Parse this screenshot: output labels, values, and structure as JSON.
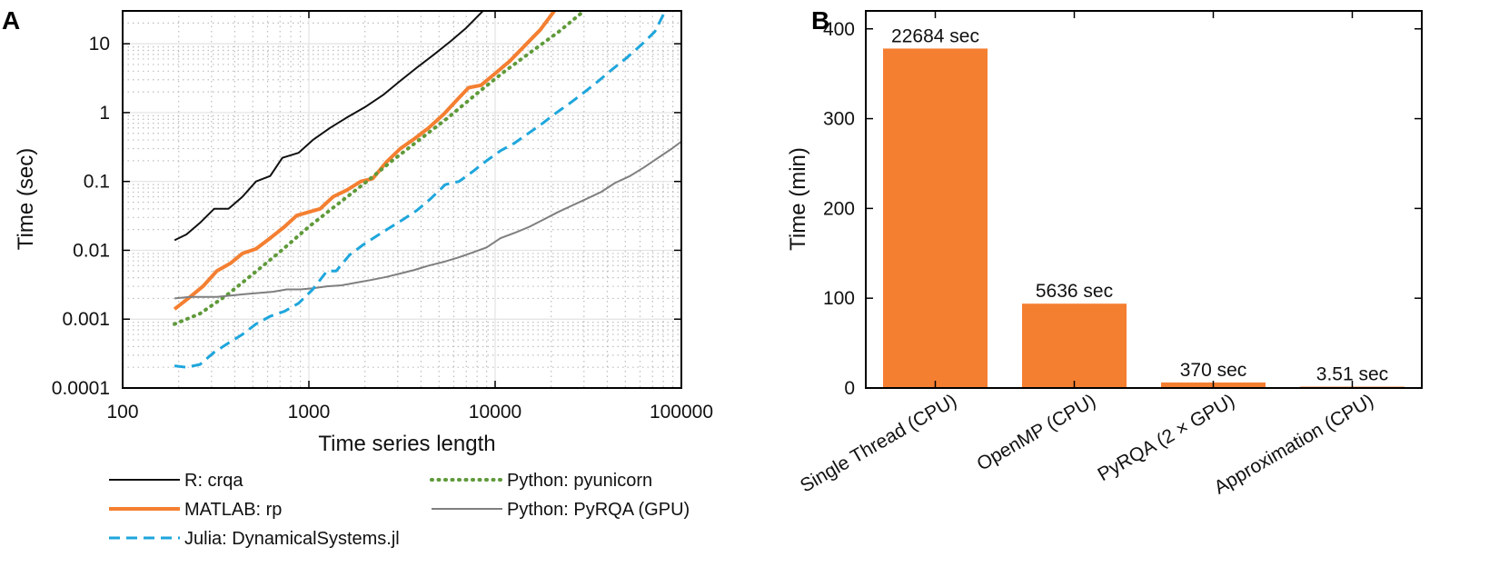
{
  "panels": {
    "a_label": "A",
    "b_label": "B"
  },
  "colors": {
    "r_crqa": "#111111",
    "matlab_rp": "#f47f31",
    "python_pyunicorn": "#5f9a3a",
    "python_pyrqa": "#7f7f7f",
    "julia": "#1ea6dc",
    "bar": "#f47f31"
  },
  "chart_data": [
    {
      "type": "line",
      "panel": "A",
      "xlabel": "Time series length",
      "ylabel": "Time (sec)",
      "xscale": "log",
      "yscale": "log",
      "xlim": [
        100,
        100000
      ],
      "ylim": [
        0.0001,
        30
      ],
      "x_ticks": [
        100,
        1000,
        10000,
        100000
      ],
      "x_tick_labels": [
        "100",
        "1000",
        "10000",
        "100000"
      ],
      "y_ticks": [
        0.0001,
        0.001,
        0.01,
        0.1,
        1,
        10
      ],
      "y_tick_labels": [
        "0.0001",
        "0.001",
        "0.01",
        "0.1",
        "1",
        "10"
      ],
      "grid": true,
      "legend_position": "bottom",
      "series": [
        {
          "name": "R: crqa",
          "color_key": "r_crqa",
          "style": "solid",
          "width": 2,
          "x": [
            190,
            220,
            260,
            310,
            370,
            440,
            520,
            620,
            720,
            880,
            1050,
            1300,
            1600,
            2000,
            2500,
            3100,
            3800,
            4700,
            5800,
            7000,
            8600
          ],
          "y": [
            0.014,
            0.017,
            0.025,
            0.04,
            0.04,
            0.06,
            0.1,
            0.12,
            0.22,
            0.26,
            0.4,
            0.6,
            0.85,
            1.2,
            1.8,
            2.9,
            4.5,
            7.0,
            11,
            17,
            30
          ]
        },
        {
          "name": "MATLAB: rp",
          "color_key": "matlab_rp",
          "style": "solid",
          "width": 4,
          "x": [
            190,
            230,
            270,
            320,
            380,
            440,
            520,
            620,
            740,
            860,
            1000,
            1150,
            1350,
            1600,
            1900,
            2200,
            2600,
            3100,
            3700,
            4400,
            5300,
            6200,
            7200,
            8400,
            10000,
            12000,
            14500,
            17500,
            20800
          ],
          "y": [
            0.0014,
            0.0021,
            0.003,
            0.005,
            0.0065,
            0.009,
            0.0105,
            0.015,
            0.022,
            0.032,
            0.036,
            0.04,
            0.06,
            0.075,
            0.1,
            0.11,
            0.19,
            0.3,
            0.42,
            0.6,
            0.95,
            1.5,
            2.3,
            2.5,
            3.7,
            5.6,
            9.5,
            16,
            30
          ]
        },
        {
          "name": "Python: pyunicorn",
          "color_key": "python_pyunicorn",
          "style": "dotted",
          "width": 4,
          "x": [
            190,
            260,
            360,
            500,
            700,
            1000,
            1400,
            2000,
            2800,
            4000,
            5600,
            8000,
            11000,
            16000,
            22000,
            30000
          ],
          "y": [
            0.00085,
            0.0012,
            0.0022,
            0.0045,
            0.0095,
            0.022,
            0.045,
            0.095,
            0.2,
            0.42,
            0.85,
            1.9,
            3.8,
            8,
            15,
            30
          ]
        },
        {
          "name": "Python: PyRQA (GPU)",
          "color_key": "python_pyrqa",
          "style": "solid",
          "width": 2,
          "x": [
            190,
            230,
            270,
            320,
            380,
            450,
            540,
            640,
            760,
            900,
            1050,
            1250,
            1500,
            1800,
            2150,
            2600,
            3100,
            3700,
            4400,
            5300,
            6300,
            7500,
            9000,
            10700,
            12800,
            15300,
            18200,
            21800,
            26000,
            31000,
            37000,
            44000,
            53000,
            63000,
            75000,
            89000,
            100000
          ],
          "y": [
            0.002,
            0.0021,
            0.0021,
            0.0021,
            0.0022,
            0.0023,
            0.0024,
            0.0025,
            0.0027,
            0.0027,
            0.0028,
            0.003,
            0.0031,
            0.0034,
            0.0037,
            0.0041,
            0.0046,
            0.0052,
            0.006,
            0.0068,
            0.0078,
            0.0092,
            0.011,
            0.015,
            0.018,
            0.022,
            0.028,
            0.036,
            0.045,
            0.056,
            0.07,
            0.095,
            0.12,
            0.16,
            0.22,
            0.3,
            0.38
          ]
        },
        {
          "name": "Julia: DynamicalSystems.jl",
          "color_key": "julia",
          "style": "dashed",
          "width": 3,
          "x": [
            190,
            220,
            260,
            310,
            370,
            440,
            520,
            620,
            740,
            880,
            1050,
            1250,
            1400,
            1650,
            1950,
            2300,
            2700,
            3200,
            3800,
            4500,
            5400,
            6400,
            7600,
            9000,
            10700,
            12700,
            15100,
            18000,
            21400,
            25500,
            30300,
            36000,
            42800,
            51000,
            60600,
            72000,
            82000
          ],
          "y": [
            0.00021,
            0.0002,
            0.00022,
            0.00033,
            0.00045,
            0.0006,
            0.00085,
            0.0011,
            0.0013,
            0.0017,
            0.0027,
            0.005,
            0.005,
            0.0085,
            0.012,
            0.016,
            0.021,
            0.028,
            0.038,
            0.056,
            0.09,
            0.1,
            0.14,
            0.2,
            0.28,
            0.36,
            0.5,
            0.7,
            1.0,
            1.4,
            2.0,
            2.9,
            4.3,
            6.3,
            9.5,
            15,
            30
          ]
        }
      ]
    },
    {
      "type": "bar",
      "panel": "B",
      "ylabel": "Time (min)",
      "ylim": [
        0,
        420
      ],
      "y_ticks": [
        0,
        100,
        200,
        300,
        400
      ],
      "y_tick_labels": [
        "0",
        "100",
        "200",
        "300",
        "400"
      ],
      "grid": false,
      "categories": [
        "Single Thread (CPU)",
        "OpenMP (CPU)",
        "PyRQA (2 × GPU)",
        "Approximation (CPU)"
      ],
      "values": [
        378.07,
        93.93,
        6.17,
        0.06
      ],
      "data_labels": [
        "22684 sec",
        "5636 sec",
        "370 sec",
        "3.51 sec"
      ]
    }
  ]
}
